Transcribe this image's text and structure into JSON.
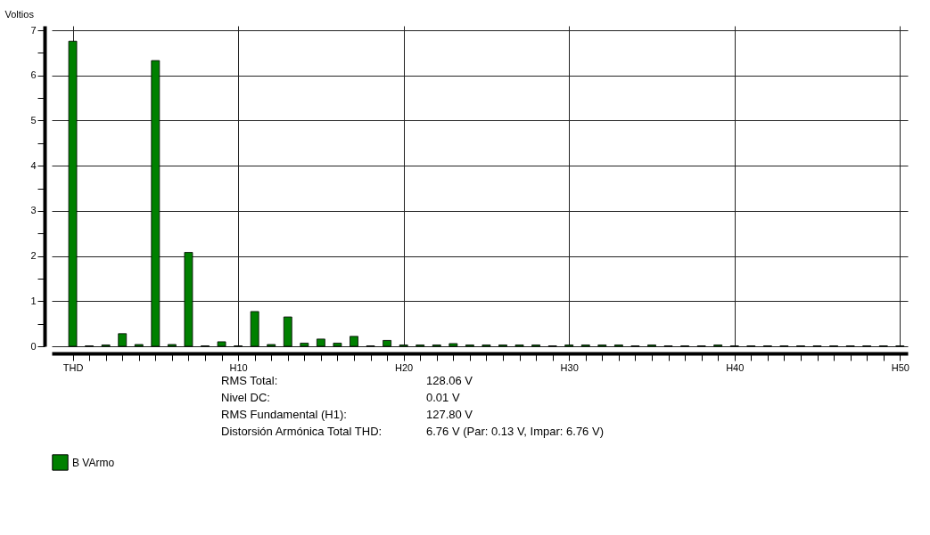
{
  "chart_data": {
    "type": "bar",
    "ylabel": "Voltios",
    "categories": [
      "THD",
      null,
      null,
      null,
      null,
      null,
      null,
      null,
      null,
      null,
      "H10",
      null,
      null,
      null,
      null,
      null,
      null,
      null,
      null,
      null,
      "H20",
      null,
      null,
      null,
      null,
      null,
      null,
      null,
      null,
      null,
      "H30",
      null,
      null,
      null,
      null,
      null,
      null,
      null,
      null,
      null,
      "H40",
      null,
      null,
      null,
      null,
      null,
      null,
      null,
      null,
      null,
      "H50"
    ],
    "series": [
      {
        "name": "B VArmo",
        "color": "#008000",
        "values": [
          6.76,
          0.01,
          0.03,
          0.28,
          0.04,
          6.33,
          0.04,
          2.08,
          0.01,
          0.1,
          0.01,
          0.77,
          0.04,
          0.65,
          0.07,
          0.16,
          0.07,
          0.22,
          0.01,
          0.13,
          0.03,
          0.03,
          0.03,
          0.06,
          0.03,
          0.03,
          0.03,
          0.03,
          0.03,
          0.01,
          0.03,
          0.03,
          0.03,
          0.03,
          0.01,
          0.03,
          0.01,
          0.01,
          0.01,
          0.03,
          0.01,
          0.01,
          0.01,
          0.01,
          0.01,
          0.01,
          0.01,
          0.01,
          0.01,
          0.01,
          0.01
        ]
      }
    ],
    "ylim": [
      0,
      7.1
    ],
    "yticks": [
      0,
      {
        "value": 0.5,
        "label": null
      },
      1,
      {
        "value": 1.5,
        "label": null
      },
      2,
      {
        "value": 2.5,
        "label": null
      },
      3,
      {
        "value": 3.5,
        "label": null
      },
      4,
      {
        "value": 4.5,
        "label": null
      },
      5,
      {
        "value": 5.5,
        "label": null
      },
      6,
      {
        "value": 6.5,
        "label": null
      },
      7
    ],
    "grid": true,
    "legend": "bottom",
    "annotations": [
      "RMS Total:",
      "128.06 V",
      "Nivel DC:",
      "0.01 V",
      "RMS Fundamental (H1):",
      "127.80 V",
      "Distorsión Armónica Total THD:",
      "6.76 V (Par: 0.13 V, Impar: 6.76 V)"
    ]
  }
}
